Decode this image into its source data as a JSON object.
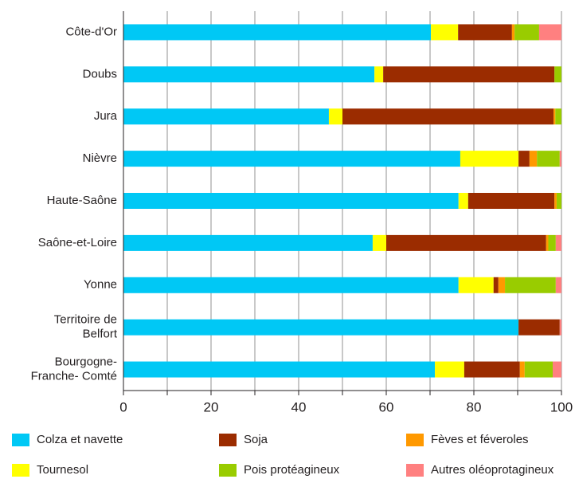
{
  "chart_data": {
    "type": "stacked-barh",
    "categories": [
      "Côte-d'Or",
      "Doubs",
      "Jura",
      "Nièvre",
      "Haute-Saône",
      "Saône-et-Loire",
      "Yonne",
      "Territoire de\nBelfort",
      "Bourgogne-\nFranche- Comté"
    ],
    "series": [
      {
        "name": "Colza et navette",
        "color": "#00c8f5",
        "values": [
          70.2,
          57.3,
          46.9,
          76.9,
          76.5,
          56.9,
          76.5,
          90.2,
          71.1
        ]
      },
      {
        "name": "Tournesol",
        "color": "#ffff00",
        "values": [
          6.2,
          2,
          3.1,
          13.3,
          2.2,
          3.1,
          8,
          0,
          6.7
        ]
      },
      {
        "name": "Soja",
        "color": "#9b2c00",
        "values": [
          12.3,
          39.1,
          48.2,
          2.5,
          19.7,
          36.5,
          1.1,
          9.4,
          12.7
        ]
      },
      {
        "name": "Pois protéagineux",
        "color": "#99cc00",
        "values": [
          5.6,
          1.6,
          1.4,
          5.2,
          1.1,
          1.7,
          11.6,
          0,
          6.4
        ]
      },
      {
        "name": "Fèves et féveroles",
        "color": "#ff9900",
        "values": [
          0.6,
          0,
          0.4,
          1.7,
          0.5,
          0.5,
          1.5,
          0,
          1.1
        ]
      },
      {
        "name": "Autres oléoprotagineux",
        "color": "#ff8080",
        "values": [
          5.1,
          0,
          0,
          0.4,
          0,
          1.3,
          1.3,
          0.4,
          2
        ]
      }
    ],
    "stack_order": [
      0,
      1,
      2,
      4,
      3,
      5
    ],
    "xlim": [
      0,
      100
    ],
    "xticks": [
      0,
      20,
      40,
      60,
      80,
      100
    ],
    "xminor": [
      10,
      30,
      50,
      70,
      90
    ],
    "grid": true
  }
}
